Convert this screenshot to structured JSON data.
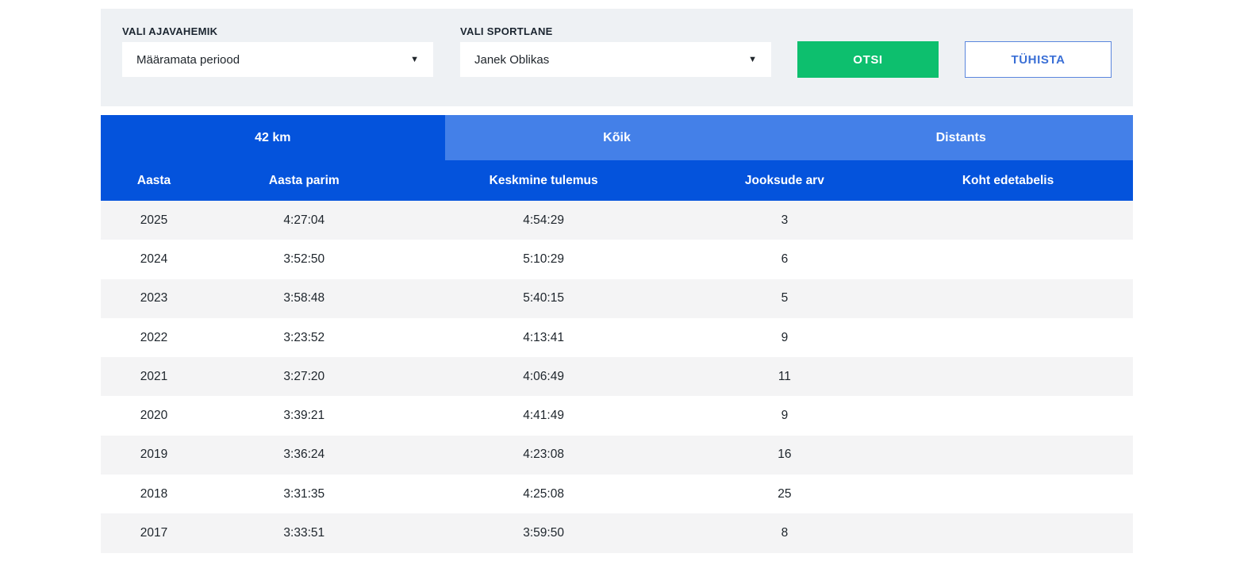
{
  "filters": {
    "period": {
      "label": "VALI AJAVAHEMIK",
      "value": "Määramata periood"
    },
    "athlete": {
      "label": "VALI SPORTLANE",
      "value": "Janek Oblikas"
    },
    "search_button": "OTSI",
    "cancel_button": "TÜHISTA"
  },
  "icons": {
    "dropdown": "▼"
  },
  "tabs": [
    {
      "label": "42 km",
      "active": true
    },
    {
      "label": "Kõik",
      "active": false
    },
    {
      "label": "Distants",
      "active": false
    }
  ],
  "table": {
    "columns": [
      "Aasta",
      "Aasta parim",
      "Keskmine tulemus",
      "Jooksude arv",
      "Koht edetabelis"
    ],
    "rows": [
      [
        "2025",
        "4:27:04",
        "4:54:29",
        "3",
        ""
      ],
      [
        "2024",
        "3:52:50",
        "5:10:29",
        "6",
        ""
      ],
      [
        "2023",
        "3:58:48",
        "5:40:15",
        "5",
        ""
      ],
      [
        "2022",
        "3:23:52",
        "4:13:41",
        "9",
        ""
      ],
      [
        "2021",
        "3:27:20",
        "4:06:49",
        "11",
        ""
      ],
      [
        "2020",
        "3:39:21",
        "4:41:49",
        "9",
        ""
      ],
      [
        "2019",
        "3:36:24",
        "4:23:08",
        "16",
        ""
      ],
      [
        "2018",
        "3:31:35",
        "4:25:08",
        "25",
        ""
      ],
      [
        "2017",
        "3:33:51",
        "3:59:50",
        "8",
        ""
      ]
    ]
  },
  "colors": {
    "primary_blue": "#0453dc",
    "light_blue_tab": "#4480e8",
    "green_button": "#0dbf6e",
    "cancel_border": "#5b86dd",
    "cancel_text": "#3a6fd6",
    "panel_bg": "#eef1f4",
    "row_alt_bg": "#f4f4f5"
  }
}
